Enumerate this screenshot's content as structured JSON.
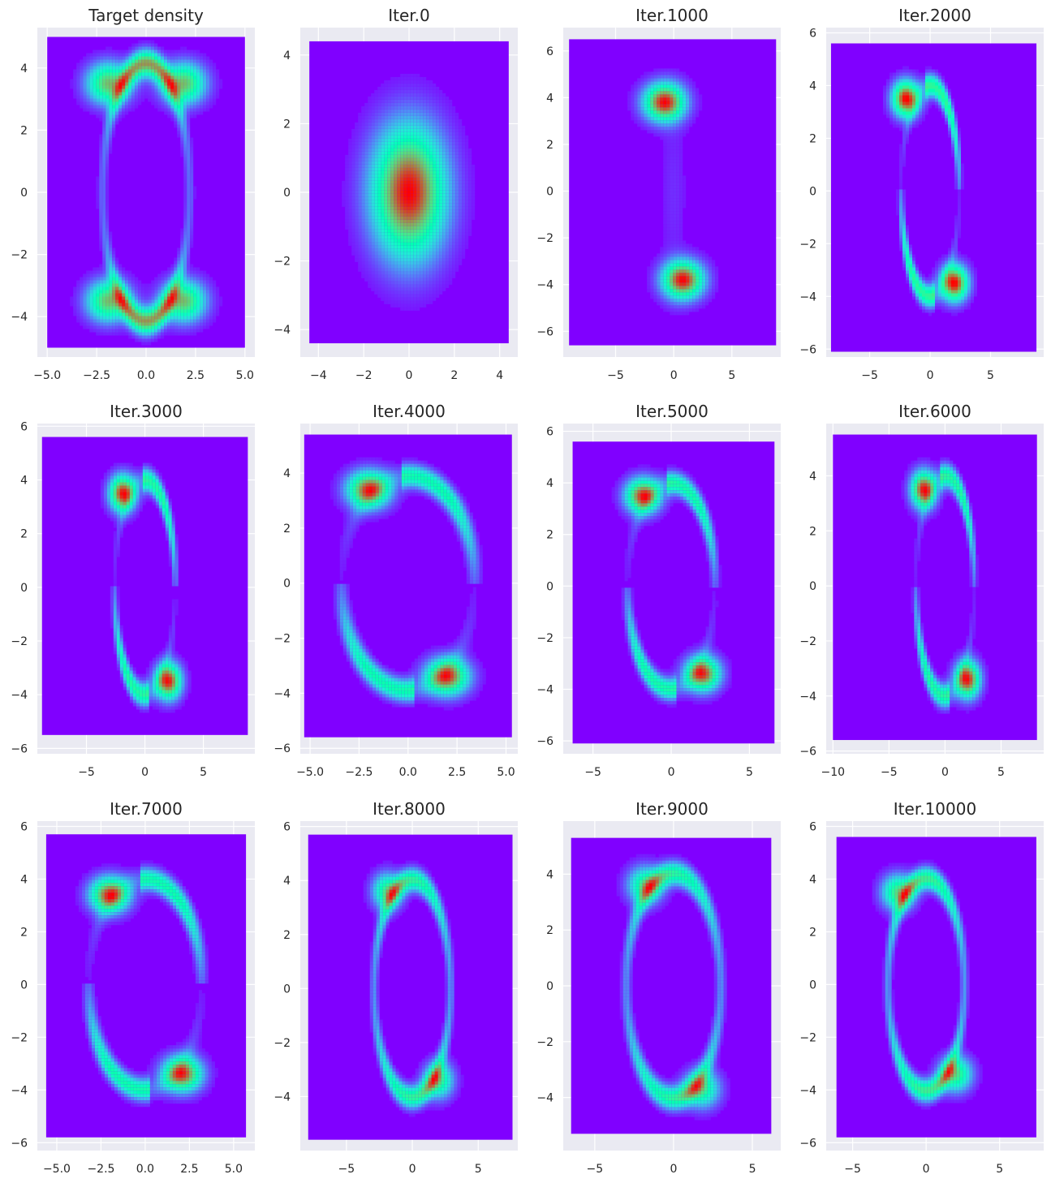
{
  "colors": {
    "panel_background": "#eaeaf2",
    "grid": "#ffffff",
    "text": "#262626",
    "colormap": "rainbow"
  },
  "chart_data": [
    {
      "type": "heatmap",
      "title": "Target density",
      "plot": "hexbin",
      "xlim": [
        -5.5,
        5.5
      ],
      "ylim": [
        -5.3,
        5.3
      ],
      "hex_x": [
        -5,
        5
      ],
      "hex_y": [
        -5,
        5
      ],
      "xticks": [
        -5,
        -2.5,
        0,
        2.5,
        5
      ],
      "xticklabels": [
        "−5.0",
        "−2.5",
        "0.0",
        "2.5",
        "5.0"
      ],
      "yticks": [
        -4,
        -2,
        0,
        2,
        4
      ],
      "yticklabels": [
        "−4",
        "−2",
        "0",
        "2",
        "4"
      ],
      "density": {
        "shape": "target",
        "arc_x": 2.2,
        "arc_y": 4.1,
        "blobs": [
          [
            -1.9,
            3.5
          ],
          [
            1.9,
            3.5
          ],
          [
            -1.9,
            -3.5
          ],
          [
            1.9,
            -3.5
          ]
        ]
      }
    },
    {
      "type": "heatmap",
      "title": "Iter.0",
      "plot": "hexbin",
      "xlim": [
        -4.8,
        4.8
      ],
      "ylim": [
        -4.8,
        4.8
      ],
      "hex_x": [
        -4.4,
        4.4
      ],
      "hex_y": [
        -4.4,
        4.4
      ],
      "xticks": [
        -4,
        -2,
        0,
        2,
        4
      ],
      "xticklabels": [
        "−4",
        "−2",
        "0",
        "2",
        "4"
      ],
      "yticks": [
        -4,
        -2,
        0,
        2,
        4
      ],
      "yticklabels": [
        "−4",
        "−2",
        "0",
        "2",
        "4"
      ],
      "density": {
        "shape": "gaussian",
        "center": [
          0,
          0
        ],
        "spread": [
          1.1,
          1.3
        ]
      }
    },
    {
      "type": "heatmap",
      "title": "Iter.1000",
      "plot": "hexbin",
      "xlim": [
        -9.5,
        9.2
      ],
      "ylim": [
        -7.1,
        7.0
      ],
      "hex_x": [
        -9,
        8.8
      ],
      "hex_y": [
        -6.6,
        6.5
      ],
      "xticks": [
        -5,
        0,
        5
      ],
      "xticklabels": [
        "−5",
        "0",
        "5"
      ],
      "yticks": [
        -6,
        -4,
        -2,
        0,
        2,
        4,
        6
      ],
      "yticklabels": [
        "−6",
        "−4",
        "−2",
        "0",
        "2",
        "4",
        "6"
      ],
      "density": {
        "shape": "two-blobs",
        "blobs": [
          [
            -0.8,
            3.8
          ],
          [
            0.8,
            -3.8
          ]
        ]
      }
    },
    {
      "type": "heatmap",
      "title": "Iter.2000",
      "plot": "hexbin",
      "xlim": [
        -8.6,
        9.4
      ],
      "ylim": [
        -6.3,
        6.2
      ],
      "hex_x": [
        -8.2,
        8.8
      ],
      "hex_y": [
        -6.1,
        5.6
      ],
      "xticks": [
        -5,
        0,
        5
      ],
      "xticklabels": [
        "−5",
        "0",
        "5"
      ],
      "yticks": [
        -6,
        -4,
        -2,
        0,
        2,
        4,
        6
      ],
      "yticklabels": [
        "−6",
        "−4",
        "−2",
        "0",
        "2",
        "4",
        "6"
      ],
      "density": {
        "shape": "s-curve",
        "arc_x": 2.4,
        "arc_y": 4.0,
        "blobs": [
          [
            -2.0,
            3.5
          ],
          [
            2.0,
            -3.5
          ]
        ]
      }
    },
    {
      "type": "heatmap",
      "title": "Iter.3000",
      "plot": "hexbin",
      "xlim": [
        -9.2,
        9.4
      ],
      "ylim": [
        -6.2,
        6.1
      ],
      "hex_x": [
        -8.8,
        8.8
      ],
      "hex_y": [
        -5.5,
        5.6
      ],
      "xticks": [
        -5,
        0,
        5
      ],
      "xticklabels": [
        "−5",
        "0",
        "5"
      ],
      "yticks": [
        -6,
        -4,
        -2,
        0,
        2,
        4,
        6
      ],
      "yticklabels": [
        "−6",
        "−4",
        "−2",
        "0",
        "2",
        "4",
        "6"
      ],
      "density": {
        "shape": "s-curve",
        "arc_x": 2.6,
        "arc_y": 4.0,
        "blobs": [
          [
            -1.9,
            3.5
          ],
          [
            2.0,
            -3.5
          ]
        ]
      }
    },
    {
      "type": "heatmap",
      "title": "Iter.4000",
      "plot": "hexbin",
      "xlim": [
        -5.5,
        5.6
      ],
      "ylim": [
        -6.2,
        5.8
      ],
      "hex_x": [
        -5.3,
        5.3
      ],
      "hex_y": [
        -5.6,
        5.4
      ],
      "xticks": [
        -5,
        -2.5,
        0,
        2.5,
        5
      ],
      "xticklabels": [
        "−5.0",
        "−2.5",
        "0.0",
        "2.5",
        "5.0"
      ],
      "yticks": [
        -6,
        -4,
        -2,
        0,
        2,
        4
      ],
      "yticklabels": [
        "−6",
        "−4",
        "−2",
        "0",
        "2",
        "4"
      ],
      "density": {
        "shape": "s-curve",
        "arc_x": 3.4,
        "arc_y": 3.9,
        "blobs": [
          [
            -2.0,
            3.4
          ],
          [
            2.0,
            -3.4
          ]
        ]
      }
    },
    {
      "type": "heatmap",
      "title": "Iter.5000",
      "plot": "hexbin",
      "xlim": [
        -6.9,
        7.0
      ],
      "ylim": [
        -6.5,
        6.3
      ],
      "hex_x": [
        -6.3,
        6.6
      ],
      "hex_y": [
        -6.1,
        5.6
      ],
      "xticks": [
        -5,
        0,
        5
      ],
      "xticklabels": [
        "−5",
        "0",
        "5"
      ],
      "yticks": [
        -6,
        -4,
        -2,
        0,
        2,
        4,
        6
      ],
      "yticklabels": [
        "−6",
        "−4",
        "−2",
        "0",
        "2",
        "4",
        "6"
      ],
      "density": {
        "shape": "s-curve",
        "arc_x": 2.8,
        "arc_y": 4.0,
        "blobs": [
          [
            -1.8,
            3.5
          ],
          [
            2.0,
            -3.4
          ]
        ]
      }
    },
    {
      "type": "heatmap",
      "title": "Iter.6000",
      "plot": "hexbin",
      "xlim": [
        -10.6,
        8.8
      ],
      "ylim": [
        -6.1,
        5.9
      ],
      "hex_x": [
        -10,
        8.2
      ],
      "hex_y": [
        -5.6,
        5.5
      ],
      "xticks": [
        -10,
        -5,
        0,
        5
      ],
      "xticklabels": [
        "−10",
        "−5",
        "0",
        "5"
      ],
      "yticks": [
        -6,
        -4,
        -2,
        0,
        2,
        4
      ],
      "yticklabels": [
        "−6",
        "−4",
        "−2",
        "0",
        "2",
        "4"
      ],
      "density": {
        "shape": "s-curve",
        "arc_x": 2.6,
        "arc_y": 4.0,
        "blobs": [
          [
            -1.9,
            3.5
          ],
          [
            2.0,
            -3.4
          ]
        ]
      }
    },
    {
      "type": "heatmap",
      "title": "Iter.7000",
      "plot": "hexbin",
      "xlim": [
        -6.1,
        6.2
      ],
      "ylim": [
        -6.3,
        6.2
      ],
      "hex_x": [
        -5.6,
        5.7
      ],
      "hex_y": [
        -5.8,
        5.7
      ],
      "xticks": [
        -5,
        -2.5,
        0,
        2.5,
        5
      ],
      "xticklabels": [
        "−5.0",
        "−2.5",
        "0.0",
        "2.5",
        "5.0"
      ],
      "yticks": [
        -6,
        -4,
        -2,
        0,
        2,
        4,
        6
      ],
      "yticklabels": [
        "−6",
        "−4",
        "−2",
        "0",
        "2",
        "4",
        "6"
      ],
      "density": {
        "shape": "s-curve",
        "arc_x": 3.2,
        "arc_y": 4.0,
        "blobs": [
          [
            -2.0,
            3.4
          ],
          [
            2.1,
            -3.4
          ]
        ]
      }
    },
    {
      "type": "heatmap",
      "title": "Iter.8000",
      "plot": "hexbin",
      "xlim": [
        -8.5,
        8.0
      ],
      "ylim": [
        -6.0,
        6.2
      ],
      "hex_x": [
        -7.9,
        7.6
      ],
      "hex_y": [
        -5.6,
        5.7
      ],
      "xticks": [
        -5,
        0,
        5
      ],
      "xticklabels": [
        "−5",
        "0",
        "5"
      ],
      "yticks": [
        -4,
        -2,
        0,
        2,
        4,
        6
      ],
      "yticklabels": [
        "−4",
        "−2",
        "0",
        "2",
        "4",
        "6"
      ],
      "density": {
        "shape": "ring",
        "arc_x": 2.9,
        "arc_y": 4.0,
        "blobs": [
          [
            -1.9,
            3.6
          ],
          [
            2.0,
            -3.4
          ]
        ]
      }
    },
    {
      "type": "heatmap",
      "title": "Iter.9000",
      "plot": "hexbin",
      "xlim": [
        -7.0,
        6.8
      ],
      "ylim": [
        -5.9,
        5.9
      ],
      "hex_x": [
        -6.5,
        6.2
      ],
      "hex_y": [
        -5.3,
        5.3
      ],
      "xticks": [
        -5,
        0,
        5
      ],
      "xticklabels": [
        "−5",
        "0",
        "5"
      ],
      "yticks": [
        -4,
        -2,
        0,
        2,
        4
      ],
      "yticklabels": [
        "−4",
        "−2",
        "0",
        "2",
        "4"
      ],
      "density": {
        "shape": "ring",
        "arc_x": 3.0,
        "arc_y": 4.0,
        "blobs": [
          [
            -1.8,
            3.6
          ],
          [
            1.8,
            -3.7
          ]
        ]
      }
    },
    {
      "type": "heatmap",
      "title": "Iter.10000",
      "plot": "hexbin",
      "xlim": [
        -6.8,
        8.0
      ],
      "ylim": [
        -6.3,
        6.2
      ],
      "hex_x": [
        -6.1,
        7.5
      ],
      "hex_y": [
        -5.8,
        5.6
      ],
      "xticks": [
        -5,
        0,
        5
      ],
      "xticklabels": [
        "−5",
        "0",
        "5"
      ],
      "yticks": [
        -6,
        -4,
        -2,
        0,
        2,
        4,
        6
      ],
      "yticklabels": [
        "−6",
        "−4",
        "−2",
        "0",
        "2",
        "4",
        "6"
      ],
      "density": {
        "shape": "ring",
        "arc_x": 2.6,
        "arc_y": 4.0,
        "blobs": [
          [
            -1.9,
            3.5
          ],
          [
            2.0,
            -3.4
          ]
        ]
      }
    }
  ]
}
